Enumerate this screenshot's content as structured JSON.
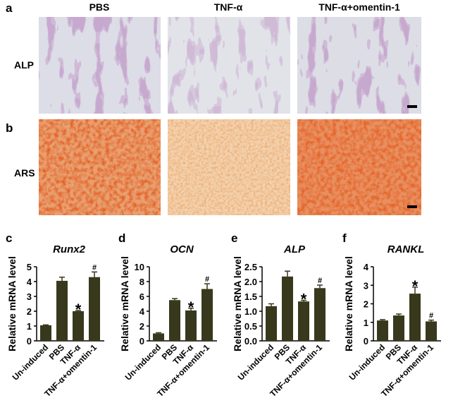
{
  "figure": {
    "panel_labels": [
      "a",
      "b"
    ],
    "columns": [
      "PBS",
      "TNF-α",
      "TNF-α+omentin-1"
    ],
    "rows": [
      "ALP",
      "ARS"
    ]
  },
  "chart_data": [
    {
      "type": "bar",
      "panel": "c",
      "title": "Runx2",
      "ylabel": "Relative mRNA level",
      "categories": [
        "Un-induced",
        "PBS",
        "TNF-α",
        "TNF-α+omentin-1"
      ],
      "values": [
        1.05,
        4.05,
        2.0,
        4.3
      ],
      "errors": [
        0.03,
        0.25,
        0.05,
        0.35
      ],
      "color": "#38381c",
      "ylim": [
        0,
        5
      ],
      "yticks": [
        0,
        1,
        2,
        3,
        4,
        5
      ],
      "annotations": [
        {
          "text": "*",
          "category": "TNF-α"
        },
        {
          "text": "#",
          "category": "TNF-α+omentin-1"
        }
      ]
    },
    {
      "type": "bar",
      "panel": "d",
      "title": "OCN",
      "ylabel": "Relative mRNA level",
      "categories": [
        "Un-induced",
        "PBS",
        "TNF-α",
        "TNF-α+omentin-1"
      ],
      "values": [
        1.0,
        5.5,
        4.1,
        7.0
      ],
      "errors": [
        0.1,
        0.2,
        0.3,
        0.7
      ],
      "color": "#38381c",
      "ylim": [
        0,
        10
      ],
      "yticks": [
        0,
        2,
        4,
        6,
        8,
        10
      ],
      "annotations": [
        {
          "text": "*",
          "category": "TNF-α"
        },
        {
          "text": "#",
          "category": "TNF-α+omentin-1"
        }
      ]
    },
    {
      "type": "bar",
      "panel": "e",
      "title": "ALP",
      "ylabel": "Relative mRNA level",
      "categories": [
        "Un-induced",
        "PBS",
        "TNF-α",
        "TNF-α+omentin-1"
      ],
      "values": [
        1.17,
        2.17,
        1.33,
        1.78
      ],
      "errors": [
        0.08,
        0.18,
        0.04,
        0.1
      ],
      "color": "#38381c",
      "ylim": [
        0,
        2.5
      ],
      "yticks": [
        {
          "value": 0,
          "label": "0.0"
        },
        0.5,
        {
          "value": 1,
          "label": "1.0"
        },
        1.5,
        {
          "value": 2,
          "label": "2.0"
        },
        2.5
      ],
      "annotations": [
        {
          "text": "*",
          "category": "TNF-α"
        },
        {
          "text": "#",
          "category": "TNF-α+omentin-1"
        }
      ]
    },
    {
      "type": "bar",
      "panel": "f",
      "title": "RANKL",
      "ylabel": "Relative mRNA level",
      "categories": [
        "Un-induced",
        "PBS",
        "TNF-α",
        "TNF-α+omentin-1"
      ],
      "values": [
        1.1,
        1.37,
        2.55,
        1.05
      ],
      "errors": [
        0.05,
        0.08,
        0.35,
        0.07
      ],
      "color": "#38381c",
      "ylim": [
        0,
        4
      ],
      "yticks": [
        0,
        1,
        2,
        3,
        4
      ],
      "annotations": [
        {
          "text": "*",
          "category": "TNF-α"
        },
        {
          "text": "#",
          "category": "TNF-α+omentin-1"
        }
      ]
    }
  ]
}
